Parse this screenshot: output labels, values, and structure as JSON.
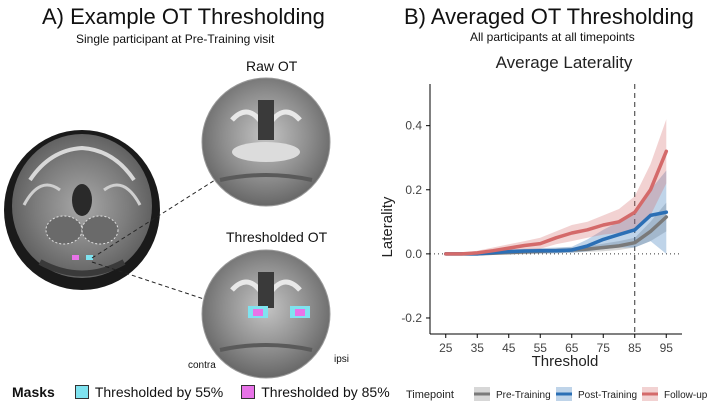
{
  "panel_a": {
    "title": "A) Example OT Thresholding",
    "subtitle": "Single participant at Pre-Training visit",
    "raw_label": "Raw OT",
    "thresholded_label": "Thresholded OT",
    "contra_label": "contra",
    "ipsi_label": "ipsi",
    "masks_legend": {
      "title": "Masks",
      "items": [
        {
          "label": "Thresholded by 55%",
          "color": "#7fe3f0"
        },
        {
          "label": "Thresholded by 85%",
          "color": "#e873e8"
        }
      ]
    }
  },
  "panel_b": {
    "title": "B) Averaged OT Thresholding",
    "subtitle": "All participants at all timepoints"
  },
  "chart_data": {
    "type": "line",
    "title": "Average Laterality",
    "xlabel": "Threshold",
    "ylabel": "Laterality",
    "x_ticks": [
      25,
      35,
      45,
      55,
      65,
      75,
      85,
      95
    ],
    "y_ticks": [
      -0.2,
      0.0,
      0.2,
      0.4
    ],
    "y_tick_labels": [
      "-0.2",
      "0.0",
      "0.2",
      "0.4"
    ],
    "xlim": [
      20,
      100
    ],
    "ylim": [
      -0.25,
      0.53
    ],
    "reference_lines": {
      "vertical_x": 85,
      "horizontal_y": 0
    },
    "legend": {
      "title": "Timepoint",
      "placement": "bottom"
    },
    "x": [
      25,
      30,
      35,
      40,
      45,
      50,
      55,
      60,
      65,
      70,
      75,
      80,
      85,
      90,
      95
    ],
    "series": [
      {
        "name": "Pre-Training",
        "color": "#7a7a7a",
        "values": [
          0.0,
          0.0,
          0.0,
          0.002,
          0.004,
          0.006,
          0.008,
          0.01,
          0.012,
          0.015,
          0.02,
          0.025,
          0.035,
          0.07,
          0.115
        ],
        "lower": [
          -0.003,
          -0.003,
          -0.003,
          -0.002,
          -0.002,
          -0.001,
          0.0,
          0.002,
          0.004,
          0.006,
          0.008,
          0.012,
          0.02,
          0.04,
          0.07
        ],
        "upper": [
          0.003,
          0.003,
          0.003,
          0.006,
          0.01,
          0.013,
          0.016,
          0.018,
          0.02,
          0.024,
          0.032,
          0.04,
          0.05,
          0.1,
          0.16
        ]
      },
      {
        "name": "Post-Training",
        "color": "#2b6fb5",
        "values": [
          0.0,
          0.0,
          0.0,
          0.004,
          0.007,
          0.009,
          0.01,
          0.01,
          0.012,
          0.025,
          0.045,
          0.06,
          0.075,
          0.12,
          0.13
        ],
        "lower": [
          -0.003,
          -0.003,
          -0.003,
          -0.002,
          0.0,
          0.002,
          0.002,
          0.002,
          0.003,
          0.008,
          0.015,
          0.02,
          0.02,
          0.04,
          0.0
        ],
        "upper": [
          0.003,
          0.003,
          0.003,
          0.01,
          0.014,
          0.016,
          0.018,
          0.02,
          0.022,
          0.045,
          0.075,
          0.1,
          0.13,
          0.2,
          0.26
        ]
      },
      {
        "name": "Follow-up",
        "color": "#d46a6a",
        "values": [
          0.0,
          0.0,
          0.003,
          0.01,
          0.018,
          0.026,
          0.032,
          0.05,
          0.065,
          0.075,
          0.09,
          0.1,
          0.13,
          0.2,
          0.32
        ],
        "lower": [
          -0.003,
          -0.003,
          -0.003,
          0.0,
          0.006,
          0.012,
          0.016,
          0.03,
          0.04,
          0.05,
          0.06,
          0.065,
          0.08,
          0.12,
          0.22
        ],
        "upper": [
          0.003,
          0.003,
          0.01,
          0.02,
          0.03,
          0.04,
          0.05,
          0.07,
          0.09,
          0.1,
          0.12,
          0.14,
          0.18,
          0.28,
          0.42
        ]
      }
    ]
  }
}
